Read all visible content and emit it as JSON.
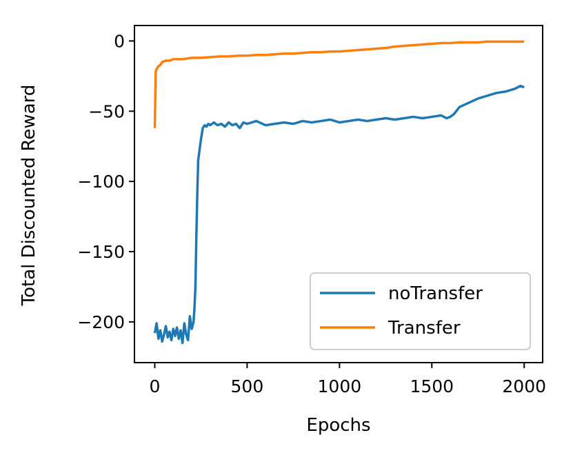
{
  "chart_data": {
    "type": "line",
    "title": "",
    "xlabel": "Epochs",
    "ylabel": "Total Discounted Reward",
    "xlim": [
      -110,
      2100
    ],
    "ylim": [
      -229,
      11
    ],
    "x_ticks": [
      0,
      500,
      1000,
      1500,
      2000
    ],
    "y_ticks": [
      0,
      -50,
      -100,
      -150,
      -200
    ],
    "x_tick_labels": [
      "0",
      "500",
      "1000",
      "1500",
      "2000"
    ],
    "y_tick_labels": [
      "0",
      "−50",
      "−100",
      "−150",
      "−200"
    ],
    "grid": false,
    "legend_position": "lower-right",
    "series": [
      {
        "name": "noTransfer",
        "color": "#1f77b4",
        "x": [
          0,
          10,
          20,
          30,
          40,
          50,
          60,
          70,
          80,
          90,
          100,
          110,
          120,
          130,
          140,
          150,
          160,
          170,
          180,
          190,
          200,
          210,
          215,
          220,
          225,
          230,
          235,
          240,
          250,
          260,
          270,
          280,
          290,
          300,
          320,
          340,
          360,
          380,
          400,
          420,
          440,
          460,
          480,
          500,
          550,
          600,
          650,
          700,
          750,
          800,
          850,
          900,
          950,
          1000,
          1050,
          1100,
          1150,
          1200,
          1250,
          1300,
          1350,
          1400,
          1450,
          1500,
          1550,
          1580,
          1600,
          1620,
          1650,
          1700,
          1750,
          1800,
          1850,
          1900,
          1950,
          1980,
          2000
        ],
        "y": [
          -208,
          -201,
          -212,
          -206,
          -214,
          -209,
          -203,
          -211,
          -207,
          -213,
          -205,
          -210,
          -204,
          -212,
          -206,
          -215,
          -201,
          -209,
          -213,
          -196,
          -205,
          -200,
          -190,
          -175,
          -140,
          -110,
          -85,
          -80,
          -70,
          -62,
          -60,
          -61,
          -59,
          -60,
          -58,
          -60,
          -59,
          -61,
          -58,
          -60,
          -59,
          -62,
          -58,
          -59,
          -57,
          -60,
          -59,
          -58,
          -59,
          -57,
          -58,
          -57,
          -56,
          -58,
          -57,
          -56,
          -57,
          -56,
          -55,
          -56,
          -55,
          -54,
          -55,
          -54,
          -53,
          -55,
          -54,
          -52,
          -47,
          -44,
          -41,
          -39,
          -37,
          -36,
          -34,
          -32,
          -33
        ]
      },
      {
        "name": "Transfer",
        "color": "#ff7f0e",
        "x": [
          0,
          5,
          10,
          20,
          30,
          40,
          60,
          80,
          100,
          150,
          200,
          250,
          300,
          350,
          400,
          450,
          500,
          550,
          600,
          650,
          700,
          750,
          800,
          850,
          900,
          950,
          1000,
          1050,
          1100,
          1150,
          1200,
          1250,
          1300,
          1350,
          1400,
          1450,
          1500,
          1550,
          1600,
          1650,
          1700,
          1750,
          1800,
          1850,
          1900,
          1950,
          2000
        ],
        "y": [
          -62,
          -22,
          -20,
          -18,
          -17,
          -15,
          -14,
          -14,
          -13,
          -13,
          -12,
          -12,
          -11.5,
          -11,
          -11,
          -10.5,
          -10.5,
          -10,
          -10,
          -9.5,
          -9,
          -9,
          -8.5,
          -8,
          -8,
          -7.5,
          -7.5,
          -7,
          -6.5,
          -6,
          -5.5,
          -5,
          -4,
          -3.5,
          -3,
          -2.5,
          -2,
          -1.5,
          -1.5,
          -1,
          -1,
          -1,
          -0.5,
          -0.5,
          -0.5,
          -0.5,
          -0.5
        ]
      }
    ]
  }
}
